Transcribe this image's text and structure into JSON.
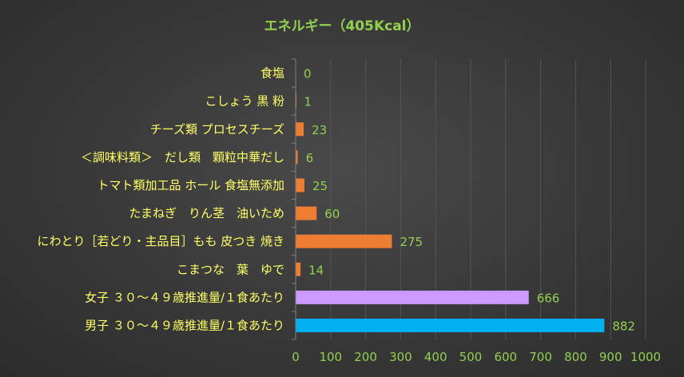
{
  "chart_data": {
    "type": "bar",
    "orientation": "horizontal",
    "title": "エネルギー（405Kcal）",
    "categories": [
      "食塩",
      "こしょう 黒 粉",
      "チーズ類 プロセスチーズ",
      "＜調味料類＞　だし類　顆粒中華だし",
      "トマト類加工品 ホール 食塩無添加",
      "たまねぎ　りん茎　油いため",
      "にわとり［若どり・主品目］もも 皮つき 焼き",
      "こまつな　葉　ゆで",
      "女子 ３０～４９歳推進量/１食あたり",
      "男子 ３０～４９歳推進量/１食あたり"
    ],
    "values": [
      0,
      1,
      23,
      6,
      25,
      60,
      275,
      14,
      666,
      882
    ],
    "colors": [
      "#ed7d31",
      "#ed7d31",
      "#ed7d31",
      "#ed7d31",
      "#ed7d31",
      "#ed7d31",
      "#ed7d31",
      "#ed7d31",
      "#cc99ff",
      "#00b0f0"
    ],
    "xlim": [
      0,
      1000
    ],
    "xticks": [
      0,
      100,
      200,
      300,
      400,
      500,
      600,
      700,
      800,
      900,
      1000
    ],
    "grid": "vertical",
    "legend": "none",
    "xlabel": "",
    "ylabel": ""
  }
}
